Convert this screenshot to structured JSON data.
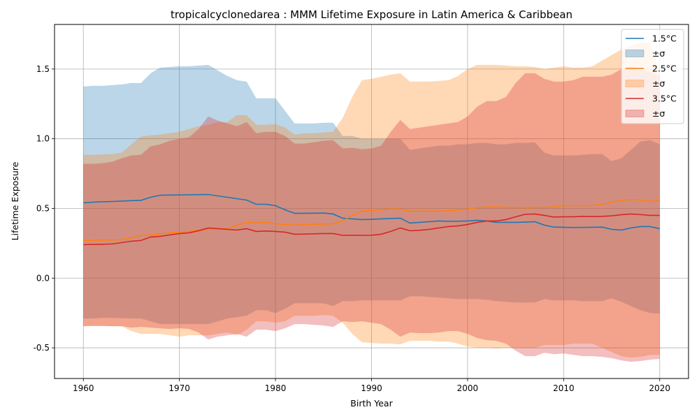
{
  "chart_data": {
    "type": "line",
    "title": "tropicalcyclonedarea : MMM Lifetime Exposure in Latin America & Caribbean",
    "xlabel": "Birth Year",
    "ylabel": "Lifetime Exposure",
    "xlim": [
      1957,
      2023
    ],
    "ylim": [
      -0.72,
      1.82
    ],
    "xticks": [
      1960,
      1970,
      1980,
      1990,
      2000,
      2010,
      2020
    ],
    "yticks": [
      -0.5,
      0.0,
      0.5,
      1.0,
      1.5
    ],
    "grid": true,
    "legend_position": "top-right",
    "x": [
      1960,
      1961,
      1962,
      1963,
      1964,
      1965,
      1966,
      1967,
      1968,
      1969,
      1970,
      1971,
      1972,
      1973,
      1974,
      1975,
      1976,
      1977,
      1978,
      1979,
      1980,
      1981,
      1982,
      1983,
      1984,
      1985,
      1986,
      1987,
      1988,
      1989,
      1990,
      1991,
      1992,
      1993,
      1994,
      1995,
      1996,
      1997,
      1998,
      1999,
      2000,
      2001,
      2002,
      2003,
      2004,
      2005,
      2006,
      2007,
      2008,
      2009,
      2010,
      2011,
      2012,
      2013,
      2014,
      2015,
      2016,
      2017,
      2018,
      2019,
      2020
    ],
    "series": [
      {
        "name": "1.5°C",
        "band_label": "±σ",
        "color": "#1f77b4",
        "fill": "#1f77b4",
        "values": [
          0.54,
          0.545,
          0.548,
          0.55,
          0.553,
          0.556,
          0.558,
          0.58,
          0.595,
          0.596,
          0.597,
          0.598,
          0.599,
          0.6,
          0.59,
          0.58,
          0.57,
          0.56,
          0.53,
          0.53,
          0.52,
          0.49,
          0.465,
          0.465,
          0.466,
          0.467,
          0.46,
          0.43,
          0.425,
          0.42,
          0.422,
          0.425,
          0.428,
          0.43,
          0.395,
          0.4,
          0.405,
          0.41,
          0.408,
          0.408,
          0.41,
          0.415,
          0.41,
          0.4,
          0.4,
          0.4,
          0.402,
          0.405,
          0.38,
          0.366,
          0.365,
          0.363,
          0.364,
          0.365,
          0.366,
          0.35,
          0.345,
          0.36,
          0.37,
          0.37,
          0.355
        ],
        "upper": [
          1.375,
          1.38,
          1.38,
          1.385,
          1.39,
          1.4,
          1.4,
          1.47,
          1.51,
          1.515,
          1.52,
          1.52,
          1.525,
          1.53,
          1.49,
          1.45,
          1.42,
          1.41,
          1.29,
          1.29,
          1.29,
          1.2,
          1.11,
          1.11,
          1.11,
          1.115,
          1.115,
          1.02,
          1.02,
          1.0,
          1.0,
          1.0,
          1.0,
          1.0,
          0.92,
          0.93,
          0.94,
          0.95,
          0.95,
          0.96,
          0.96,
          0.97,
          0.97,
          0.96,
          0.96,
          0.97,
          0.97,
          0.975,
          0.9,
          0.88,
          0.88,
          0.88,
          0.885,
          0.89,
          0.89,
          0.84,
          0.86,
          0.92,
          0.98,
          0.99,
          0.96
        ],
        "lower": [
          -0.29,
          -0.29,
          -0.285,
          -0.285,
          -0.287,
          -0.29,
          -0.29,
          -0.31,
          -0.33,
          -0.33,
          -0.33,
          -0.33,
          -0.33,
          -0.33,
          -0.31,
          -0.29,
          -0.28,
          -0.27,
          -0.23,
          -0.23,
          -0.25,
          -0.22,
          -0.18,
          -0.18,
          -0.18,
          -0.18,
          -0.2,
          -0.165,
          -0.165,
          -0.16,
          -0.16,
          -0.16,
          -0.16,
          -0.16,
          -0.13,
          -0.13,
          -0.135,
          -0.14,
          -0.145,
          -0.15,
          -0.15,
          -0.15,
          -0.155,
          -0.165,
          -0.17,
          -0.175,
          -0.175,
          -0.175,
          -0.15,
          -0.16,
          -0.16,
          -0.16,
          -0.165,
          -0.165,
          -0.165,
          -0.145,
          -0.17,
          -0.2,
          -0.23,
          -0.25,
          -0.255
        ]
      },
      {
        "name": "2.5°C",
        "band_label": "±σ",
        "color": "#ff7f0e",
        "fill": "#ff7f0e",
        "values": [
          0.27,
          0.272,
          0.273,
          0.274,
          0.276,
          0.29,
          0.305,
          0.31,
          0.318,
          0.325,
          0.33,
          0.335,
          0.345,
          0.35,
          0.355,
          0.355,
          0.38,
          0.4,
          0.395,
          0.4,
          0.39,
          0.385,
          0.38,
          0.385,
          0.386,
          0.388,
          0.39,
          0.41,
          0.45,
          0.48,
          0.485,
          0.49,
          0.495,
          0.495,
          0.48,
          0.48,
          0.48,
          0.48,
          0.484,
          0.488,
          0.495,
          0.505,
          0.51,
          0.51,
          0.508,
          0.506,
          0.505,
          0.506,
          0.508,
          0.51,
          0.52,
          0.52,
          0.52,
          0.52,
          0.53,
          0.545,
          0.556,
          0.565,
          0.56,
          0.55,
          0.56
        ],
        "upper": [
          0.885,
          0.885,
          0.887,
          0.89,
          0.9,
          0.96,
          1.015,
          1.025,
          1.03,
          1.04,
          1.05,
          1.07,
          1.09,
          1.1,
          1.12,
          1.12,
          1.17,
          1.17,
          1.1,
          1.1,
          1.105,
          1.08,
          1.03,
          1.04,
          1.04,
          1.045,
          1.05,
          1.15,
          1.3,
          1.42,
          1.43,
          1.445,
          1.46,
          1.47,
          1.41,
          1.41,
          1.41,
          1.415,
          1.42,
          1.45,
          1.5,
          1.53,
          1.53,
          1.53,
          1.525,
          1.52,
          1.52,
          1.515,
          1.5,
          1.51,
          1.52,
          1.51,
          1.51,
          1.52,
          1.56,
          1.6,
          1.64,
          1.67,
          1.69,
          1.69,
          1.45
        ],
        "lower": [
          -0.345,
          -0.343,
          -0.343,
          -0.345,
          -0.345,
          -0.38,
          -0.4,
          -0.4,
          -0.4,
          -0.41,
          -0.42,
          -0.41,
          -0.41,
          -0.41,
          -0.4,
          -0.39,
          -0.41,
          -0.37,
          -0.31,
          -0.31,
          -0.32,
          -0.31,
          -0.27,
          -0.27,
          -0.27,
          -0.265,
          -0.27,
          -0.32,
          -0.4,
          -0.46,
          -0.465,
          -0.47,
          -0.47,
          -0.475,
          -0.45,
          -0.45,
          -0.45,
          -0.455,
          -0.455,
          -0.47,
          -0.49,
          -0.5,
          -0.5,
          -0.505,
          -0.5,
          -0.5,
          -0.5,
          -0.5,
          -0.48,
          -0.48,
          -0.48,
          -0.47,
          -0.47,
          -0.47,
          -0.5,
          -0.53,
          -0.56,
          -0.57,
          -0.565,
          -0.55,
          -0.55
        ]
      },
      {
        "name": "3.5°C",
        "band_label": "±σ",
        "color": "#d62728",
        "fill": "#d62728",
        "values": [
          0.24,
          0.242,
          0.243,
          0.245,
          0.255,
          0.265,
          0.27,
          0.295,
          0.3,
          0.31,
          0.32,
          0.325,
          0.34,
          0.36,
          0.355,
          0.35,
          0.345,
          0.355,
          0.335,
          0.338,
          0.335,
          0.33,
          0.315,
          0.316,
          0.318,
          0.32,
          0.32,
          0.307,
          0.308,
          0.307,
          0.308,
          0.315,
          0.335,
          0.36,
          0.34,
          0.343,
          0.35,
          0.36,
          0.37,
          0.375,
          0.385,
          0.4,
          0.41,
          0.41,
          0.42,
          0.44,
          0.458,
          0.46,
          0.45,
          0.438,
          0.44,
          0.44,
          0.443,
          0.442,
          0.443,
          0.447,
          0.455,
          0.46,
          0.456,
          0.45,
          0.45
        ],
        "upper": [
          0.82,
          0.82,
          0.825,
          0.835,
          0.86,
          0.88,
          0.885,
          0.945,
          0.96,
          0.985,
          1.0,
          1.01,
          1.07,
          1.16,
          1.13,
          1.11,
          1.09,
          1.12,
          1.04,
          1.05,
          1.05,
          1.02,
          0.965,
          0.965,
          0.975,
          0.985,
          0.99,
          0.93,
          0.935,
          0.925,
          0.93,
          0.95,
          1.05,
          1.135,
          1.07,
          1.08,
          1.09,
          1.1,
          1.11,
          1.12,
          1.16,
          1.23,
          1.27,
          1.27,
          1.3,
          1.4,
          1.47,
          1.47,
          1.43,
          1.41,
          1.41,
          1.42,
          1.445,
          1.445,
          1.445,
          1.46,
          1.5,
          1.52,
          1.49,
          1.48,
          1.45
        ],
        "lower": [
          -0.345,
          -0.343,
          -0.343,
          -0.345,
          -0.345,
          -0.355,
          -0.35,
          -0.355,
          -0.36,
          -0.365,
          -0.36,
          -0.365,
          -0.39,
          -0.44,
          -0.42,
          -0.41,
          -0.4,
          -0.42,
          -0.37,
          -0.37,
          -0.38,
          -0.36,
          -0.33,
          -0.33,
          -0.335,
          -0.34,
          -0.35,
          -0.31,
          -0.315,
          -0.31,
          -0.32,
          -0.33,
          -0.37,
          -0.42,
          -0.39,
          -0.395,
          -0.395,
          -0.39,
          -0.38,
          -0.38,
          -0.4,
          -0.43,
          -0.445,
          -0.45,
          -0.47,
          -0.52,
          -0.56,
          -0.56,
          -0.535,
          -0.545,
          -0.54,
          -0.55,
          -0.56,
          -0.56,
          -0.565,
          -0.575,
          -0.59,
          -0.6,
          -0.595,
          -0.585,
          -0.58
        ]
      }
    ]
  }
}
